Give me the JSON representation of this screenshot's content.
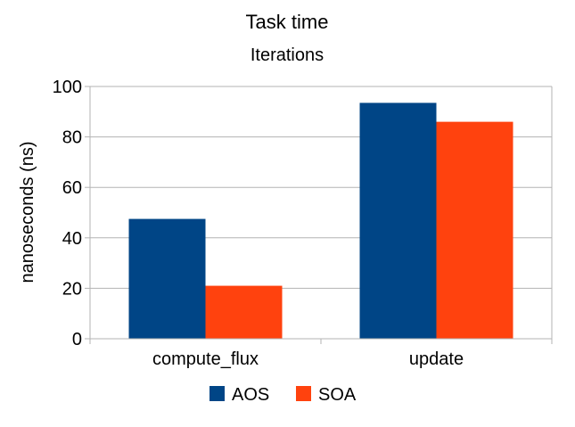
{
  "chart_data": {
    "type": "bar",
    "title": "Task time",
    "subtitle": "Iterations",
    "xlabel": "",
    "ylabel": "nanoseconds (ns)",
    "ylim": [
      0,
      100
    ],
    "yticks": [
      0,
      20,
      40,
      60,
      80,
      100
    ],
    "categories": [
      "compute_flux",
      "update"
    ],
    "series": [
      {
        "name": "AOS",
        "color": "#004586",
        "values": [
          47.5,
          93.5
        ]
      },
      {
        "name": "SOA",
        "color": "#ff420e",
        "values": [
          21,
          86
        ]
      }
    ],
    "grid": true,
    "legend": "bottom"
  }
}
